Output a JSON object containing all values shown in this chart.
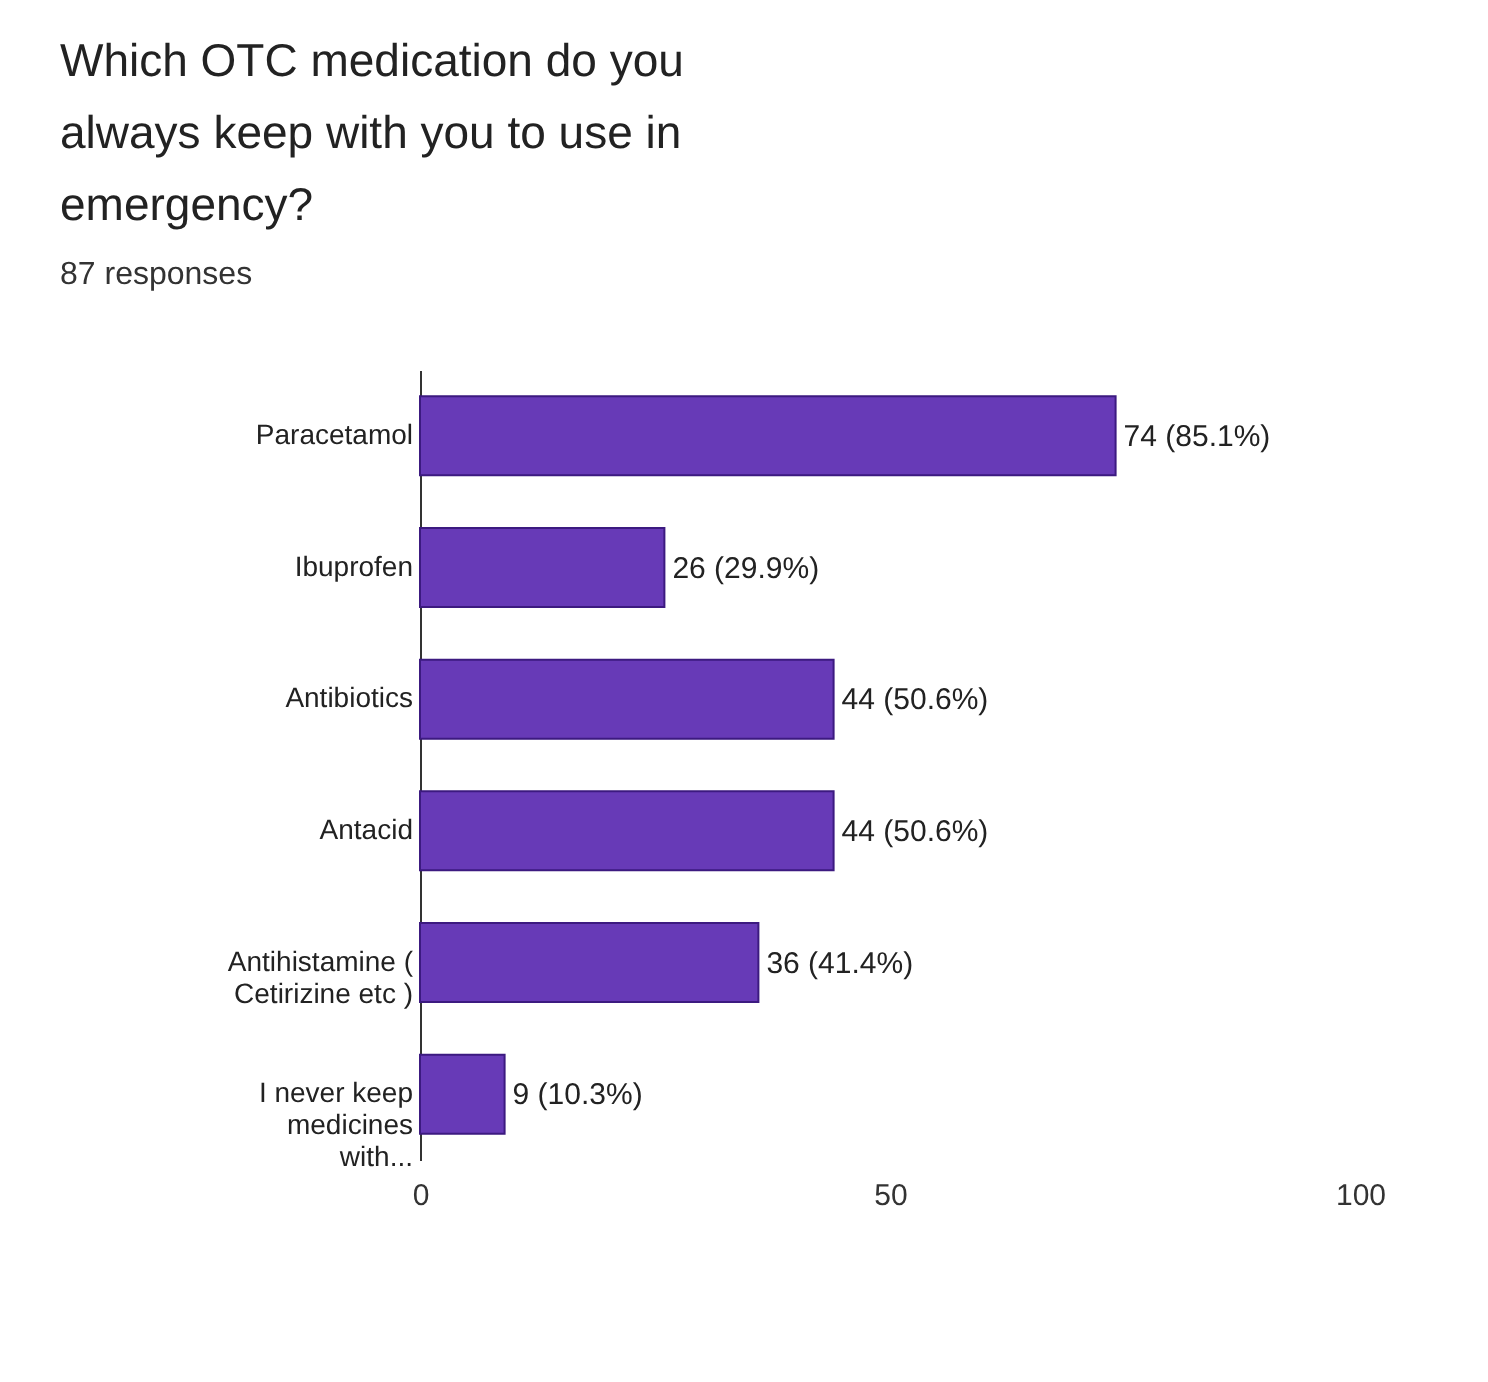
{
  "chart_data": {
    "type": "bar",
    "orientation": "horizontal",
    "title": "Which OTC medication do you always keep with you to use in emergency?",
    "subtitle": "87 responses",
    "categories": [
      "Paracetamol",
      "Ibuprofen",
      "Antibiotics",
      "Antacid",
      "Antihistamine ( Cetirizine etc )",
      "I never keep medicines with..."
    ],
    "values": [
      74,
      26,
      44,
      44,
      36,
      9
    ],
    "value_labels": [
      "74 (85.1%)",
      "26 (29.9%)",
      "44 (50.6%)",
      "44 (50.6%)",
      "36 (41.4%)",
      "9 (10.3%)"
    ],
    "color": "#673ab7",
    "xlim": [
      0,
      100
    ],
    "xticks": [
      0,
      50,
      100
    ],
    "grid": false
  }
}
